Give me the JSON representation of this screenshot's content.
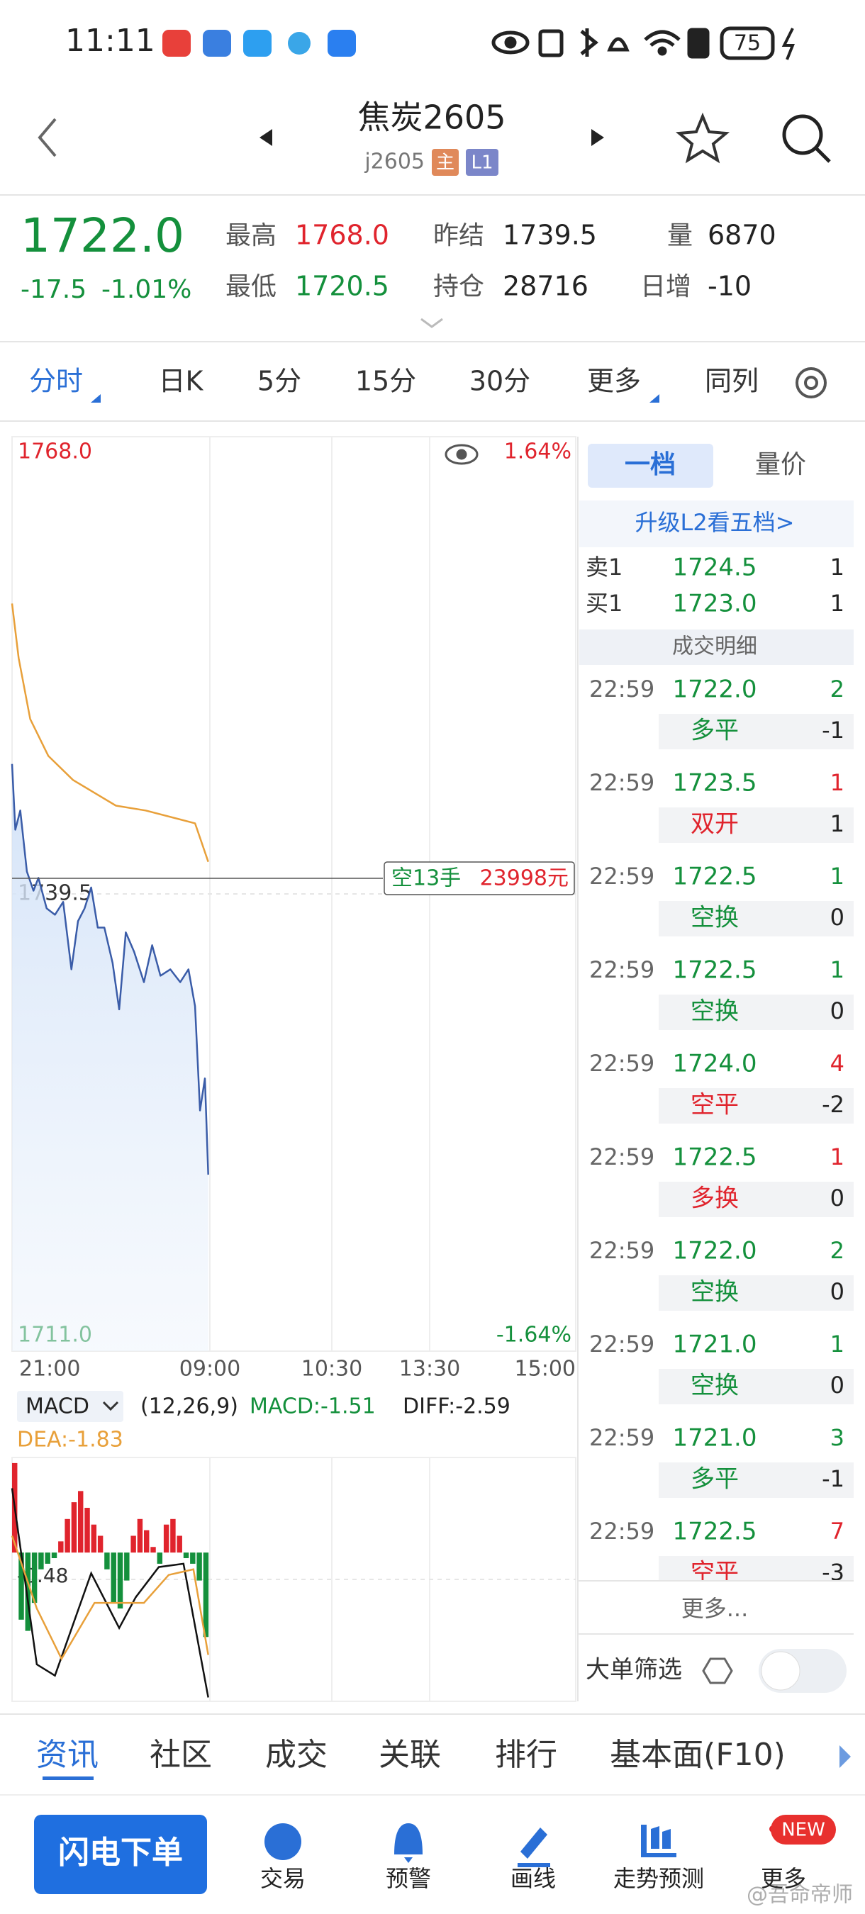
{
  "status_bar": {
    "time": "11:11",
    "battery": "75"
  },
  "header": {
    "title": "焦炭2605",
    "code": "j2605",
    "badges": [
      "主",
      "L1"
    ]
  },
  "quote": {
    "price": "1722.0",
    "change": "-17.5",
    "change_pct": "-1.01%",
    "color": "#14903c",
    "stats": [
      {
        "label": "最高",
        "value": "1768.0",
        "color": "#e0242d"
      },
      {
        "label": "最低",
        "value": "1720.5",
        "color": "#14903c"
      },
      {
        "label": "昨结",
        "value": "1739.5",
        "color": "#222222"
      },
      {
        "label": "持仓",
        "value": "28716",
        "color": "#222222"
      },
      {
        "label": "量",
        "value": "6870",
        "color": "#222222"
      },
      {
        "label": "日增",
        "value": "-10",
        "color": "#222222"
      }
    ]
  },
  "tabs": [
    "分时",
    "日K",
    "5分",
    "15分",
    "30分",
    "更多",
    "同列"
  ],
  "intraday": {
    "type": "line",
    "ylim": [
      1711,
      1768
    ],
    "yticks": [
      {
        "value": 1768,
        "label": "1768.0"
      },
      1739.5,
      {
        "value": 1711,
        "label": "1711.0"
      }
    ],
    "pct_labels": [
      "1.64%",
      "-1.64%"
    ],
    "xlim": [
      0,
      120
    ],
    "time_labels": [
      "21:00",
      "09:00",
      "10:30",
      "13:30",
      "15:00"
    ],
    "series": [
      {
        "color": "#3a5ca8",
        "x": [
          0,
          2,
          5,
          9,
          13,
          16,
          21,
          26,
          31,
          36,
          40,
          44,
          48,
          52,
          56,
          61,
          65,
          69,
          74,
          80,
          85,
          90,
          96,
          102,
          107,
          111,
          114,
          117,
          119
        ],
        "values": [
          1747.6,
          1743.5,
          1744.7,
          1740.9,
          1739.7,
          1740.5,
          1738.6,
          1738.2,
          1739.0,
          1734.8,
          1737.8,
          1738.6,
          1739.9,
          1737.4,
          1737.4,
          1735.2,
          1732.3,
          1737.1,
          1735.9,
          1734.0,
          1736.3,
          1734.4,
          1734.8,
          1734.0,
          1734.8,
          1732.5,
          1726.0,
          1728.0,
          1722.0
        ]
      },
      {
        "color": "#e8a03a",
        "x": [
          0,
          4,
          11,
          22,
          37,
          63,
          81,
          111,
          119
        ],
        "values": [
          1757.6,
          1754.2,
          1750.4,
          1748.1,
          1746.6,
          1745.0,
          1744.7,
          1743.9,
          1741.5
        ]
      }
    ],
    "position_label": {
      "side": "空13手",
      "amount": "23998元"
    }
  },
  "macd": {
    "type": "bar",
    "title": "MACD",
    "params": "(12,26,9)",
    "readouts": [
      "MACD:-1.51",
      "DIFF:-2.59",
      "DEA:-1.83"
    ],
    "ylim": [
      -2.66,
      1.7
    ],
    "yticks": [
      -0.48
    ],
    "xlim": [
      0,
      120
    ],
    "up_color": "#e0242d",
    "down_color": "#14903c",
    "bars": {
      "x": [
        0,
        4,
        8,
        12,
        16,
        20,
        24,
        28,
        32,
        36,
        40,
        44,
        48,
        52,
        56,
        60,
        64,
        68,
        72,
        76,
        80,
        84,
        88,
        92,
        96,
        100,
        104,
        108,
        112,
        116
      ],
      "values": [
        1.6,
        -1.2,
        -1.4,
        -0.9,
        -0.3,
        -0.2,
        -0.1,
        0.2,
        0.6,
        0.9,
        1.1,
        0.8,
        0.5,
        0.3,
        -0.3,
        -0.9,
        -1.0,
        -0.5,
        0.3,
        0.6,
        0.4,
        0.1,
        -0.2,
        0.5,
        0.6,
        0.3,
        -0.1,
        -0.2,
        -0.5,
        -1.51
      ]
    },
    "series": [
      {
        "color": "#111111",
        "x": [
          0,
          15,
          26,
          48,
          65,
          75,
          89,
          104,
          119
        ],
        "values": [
          1.15,
          -2.0,
          -2.2,
          -0.37,
          -1.35,
          -0.8,
          -0.26,
          -0.2,
          -2.59
        ]
      },
      {
        "color": "#e8a03a",
        "x": [
          0,
          15,
          30,
          50,
          65,
          80,
          95,
          110,
          119
        ],
        "values": [
          0.3,
          -1.0,
          -1.9,
          -0.9,
          -0.9,
          -0.9,
          -0.4,
          -0.3,
          -1.83
        ]
      }
    ]
  },
  "order_book": {
    "tabs": [
      "一档",
      "量价"
    ],
    "upgrade": "升级L2看五档>",
    "levels": [
      {
        "label": "卖1",
        "price": "1724.5",
        "qty": "1"
      },
      {
        "label": "买1",
        "price": "1723.0",
        "qty": "1"
      }
    ]
  },
  "trades": {
    "title": "成交明细",
    "more": "更多...",
    "filter": "大单筛选",
    "rows": [
      {
        "time": "22:59",
        "price": "1722.0",
        "volume": "2",
        "type": "多平",
        "change": "-1",
        "color": "#14903c"
      },
      {
        "time": "22:59",
        "price": "1723.5",
        "volume": "1",
        "type": "双开",
        "change": "1",
        "color": "#e0242d"
      },
      {
        "time": "22:59",
        "price": "1722.5",
        "volume": "1",
        "type": "空换",
        "change": "0",
        "color": "#14903c"
      },
      {
        "time": "22:59",
        "price": "1722.5",
        "volume": "1",
        "type": "空换",
        "change": "0",
        "color": "#14903c"
      },
      {
        "time": "22:59",
        "price": "1724.0",
        "volume": "4",
        "type": "空平",
        "change": "-2",
        "color": "#e0242d"
      },
      {
        "time": "22:59",
        "price": "1722.5",
        "volume": "1",
        "type": "多换",
        "change": "0",
        "color": "#e0242d"
      },
      {
        "time": "22:59",
        "price": "1722.0",
        "volume": "2",
        "type": "空换",
        "change": "0",
        "color": "#14903c"
      },
      {
        "time": "22:59",
        "price": "1721.0",
        "volume": "1",
        "type": "空换",
        "change": "0",
        "color": "#14903c"
      },
      {
        "time": "22:59",
        "price": "1721.0",
        "volume": "3",
        "type": "多平",
        "change": "-1",
        "color": "#14903c"
      },
      {
        "time": "22:59",
        "price": "1722.5",
        "volume": "7",
        "type": "空平",
        "change": "-3",
        "color": "#e0242d"
      }
    ]
  },
  "bottom_tabs": [
    "资讯",
    "社区",
    "成交",
    "关联",
    "排行",
    "基本面(F10)"
  ],
  "nav": {
    "primary": "闪电下单",
    "items": [
      "交易",
      "预警",
      "画线",
      "走势预测",
      "更多"
    ],
    "badge": "NEW"
  },
  "watermark": "@吾命帝师"
}
